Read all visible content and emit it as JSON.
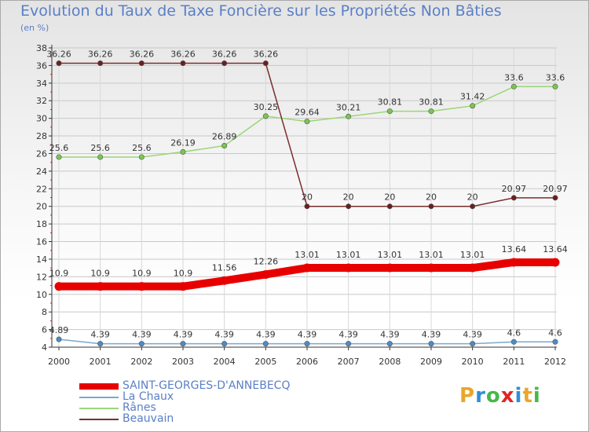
{
  "chart_title": "Evolution du Taux de Taxe Foncière sur les Propriétés Non Bâties",
  "chart_unit": "(en %)",
  "brand_letters": [
    "P",
    "r",
    "o",
    "x",
    "i",
    "t",
    "i"
  ],
  "brand_colors": [
    "#e8a72a",
    "#2f8fd6",
    "#48b848",
    "#e32424",
    "#2f8fd6",
    "#e8a72a",
    "#48b848"
  ],
  "chart_data": {
    "type": "line",
    "title": "Evolution du Taux de Taxe Foncière sur les Propriétés Non Bâties",
    "ylabel": "(en %)",
    "xlabel": "",
    "ylim": [
      4,
      38
    ],
    "yticks": [
      4,
      6,
      8,
      10,
      12,
      14,
      16,
      18,
      20,
      22,
      24,
      26,
      28,
      30,
      32,
      34,
      36,
      38
    ],
    "x": [
      "2000",
      "2001",
      "2002",
      "2003",
      "2004",
      "2005",
      "2006",
      "2007",
      "2008",
      "2009",
      "2010",
      "2011",
      "2012"
    ],
    "grid": true,
    "legend_position": "bottom-left",
    "series": [
      {
        "name": "SAINT-GEORGES-D'ANNEBECQ",
        "values": [
          10.9,
          10.9,
          10.9,
          10.9,
          11.56,
          12.26,
          13.01,
          13.01,
          13.01,
          13.01,
          13.01,
          13.64,
          13.64
        ],
        "labels": [
          "10.9",
          "10.9",
          "10.9",
          "10.9",
          "11.56",
          "12.26",
          "13.01",
          "13.01",
          "13.01",
          "13.01",
          "13.01",
          "13.64",
          "13.64"
        ],
        "color": "#e80000",
        "marker_color": "#e80000"
      },
      {
        "name": "La Chaux",
        "values": [
          4.89,
          4.39,
          4.39,
          4.39,
          4.39,
          4.39,
          4.39,
          4.39,
          4.39,
          4.39,
          4.39,
          4.6,
          4.6
        ],
        "labels": [
          "4.89",
          "4.39",
          "4.39",
          "4.39",
          "4.39",
          "4.39",
          "4.39",
          "4.39",
          "4.39",
          "4.39",
          "4.39",
          "4.6",
          "4.6"
        ],
        "color": "#7ba8cc",
        "marker_color": "#4a8cc8"
      },
      {
        "name": "Rânes",
        "values": [
          25.6,
          25.6,
          25.6,
          26.19,
          26.89,
          30.25,
          29.64,
          30.21,
          30.81,
          30.81,
          31.42,
          33.6,
          33.6
        ],
        "labels": [
          "25.6",
          "25.6",
          "25.6",
          "26.19",
          "26.89",
          "30.25",
          "29.64",
          "30.21",
          "30.81",
          "30.81",
          "31.42",
          "33.6",
          "33.6"
        ],
        "color": "#9ad67a",
        "marker_color": "#7ac74f"
      },
      {
        "name": "Beauvain",
        "values": [
          36.26,
          36.26,
          36.26,
          36.26,
          36.26,
          36.26,
          20,
          20,
          20,
          20,
          20,
          20.97,
          20.97
        ],
        "labels": [
          "36.26",
          "36.26",
          "36.26",
          "36.26",
          "36.26",
          "36.26",
          "20",
          "20",
          "20",
          "20",
          "20",
          "20.97",
          "20.97"
        ],
        "color": "#7a2e2e",
        "marker_color": "#6b1f1f"
      }
    ]
  }
}
